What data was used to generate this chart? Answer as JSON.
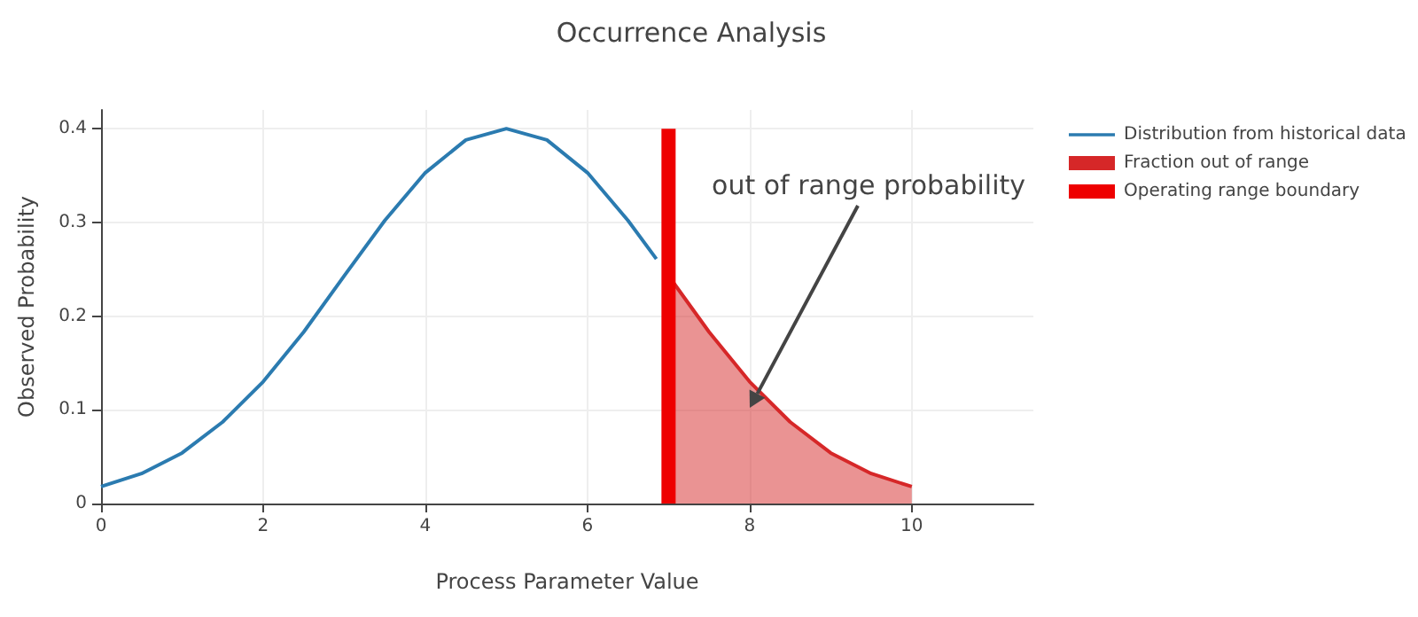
{
  "chart_data": {
    "type": "line",
    "title": "Occurrence Analysis",
    "xlabel": "Process Parameter Value",
    "ylabel": "Observed Probability",
    "series": [
      {
        "name": "Distribution from historical data",
        "color": "#2b7bb0",
        "x": [
          0,
          0.5,
          1,
          1.5,
          2,
          2.5,
          3,
          3.5,
          4,
          4.5,
          5,
          5.5,
          6,
          6.5,
          6.85
        ],
        "values": [
          0.018,
          0.032,
          0.054,
          0.087,
          0.13,
          0.183,
          0.243,
          0.302,
          0.353,
          0.388,
          0.4,
          0.388,
          0.353,
          0.302,
          0.261
        ]
      },
      {
        "name": "Fraction out of range",
        "type": "area",
        "color": "#d62728",
        "x": [
          7,
          7.5,
          8,
          8.5,
          9,
          9.5,
          10
        ],
        "values": [
          0.243,
          0.183,
          0.13,
          0.087,
          0.054,
          0.032,
          0.018
        ]
      },
      {
        "name": "Operating range boundary",
        "type": "bar",
        "color": "#ee0000",
        "x": [
          7
        ],
        "values": [
          0.4
        ]
      }
    ],
    "annotations": [
      "out of range probability"
    ],
    "xlim": [
      0,
      11.5
    ],
    "xticks": [
      0,
      2,
      4,
      6,
      8,
      10
    ],
    "ylim": [
      0,
      0.42
    ],
    "yticks": [
      0,
      0.1,
      0.2,
      0.3,
      0.4
    ],
    "grid": true,
    "legend": "top right",
    "marker": "none"
  }
}
